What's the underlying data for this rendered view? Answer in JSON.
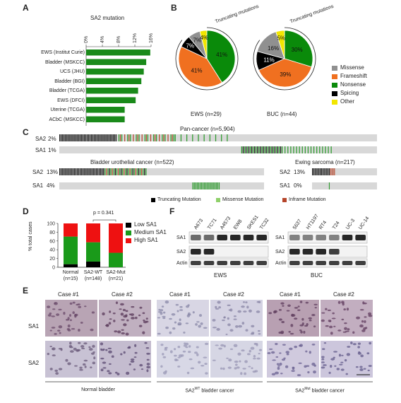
{
  "panels": {
    "A": "A",
    "B": "B",
    "C": "C",
    "D": "D",
    "E": "E",
    "F": "F"
  },
  "panelA": {
    "chart_data": {
      "type": "bar",
      "orientation": "horizontal",
      "title": "SA2 mutation",
      "categories": [
        "EWS (Institut Curie)",
        "Bladder (MSKCC)",
        "UCS (JHU)",
        "Bladder (BGI)",
        "Bladder (TCGA)",
        "EWS (DFCI)",
        "Uterine (TCGA)",
        "ACbC (MSKCC)"
      ],
      "values": [
        15.8,
        14.8,
        14.2,
        13.6,
        12.8,
        12.2,
        9.5,
        9.5
      ],
      "ticks": [
        "0%",
        "4%",
        "8%",
        "12%",
        "16%"
      ],
      "xlim": [
        0,
        16
      ],
      "color": "#1a8a1a"
    }
  },
  "panelB": {
    "chart_data": [
      {
        "type": "pie",
        "caption": "EWS (n=29)",
        "slices": [
          {
            "category": "Nonsense",
            "value": 41,
            "label": "41%"
          },
          {
            "category": "Frameshift",
            "value": 41,
            "label": "41%"
          },
          {
            "category": "Spicing",
            "value": 7,
            "label": "7%"
          },
          {
            "category": "Missense",
            "value": 7,
            "label": "7%"
          },
          {
            "category": "Other",
            "value": 4,
            "label": "4%"
          }
        ],
        "annotation": "Truncating mutations"
      },
      {
        "type": "pie",
        "caption": "BUC (n=44)",
        "slices": [
          {
            "category": "Nonsense",
            "value": 30,
            "label": "30%"
          },
          {
            "category": "Frameshift",
            "value": 39,
            "label": "39%"
          },
          {
            "category": "Spicing",
            "value": 11,
            "label": "11%"
          },
          {
            "category": "Missense",
            "value": 16,
            "label": "16%"
          },
          {
            "category": "Other",
            "value": 5,
            "label": "5%"
          }
        ],
        "annotation": "Truncating mutations"
      }
    ],
    "legend": [
      {
        "label": "Missense",
        "color": "#909090"
      },
      {
        "label": "Frameshift",
        "color": "#f07020"
      },
      {
        "label": "Nonsense",
        "color": "#0a8a0a"
      },
      {
        "label": "Spicing",
        "color": "#000000"
      },
      {
        "label": "Other",
        "color": "#f2e600"
      }
    ]
  },
  "panelC": {
    "pan_title": "Pan-cancer (n=5,904)",
    "pan_rows": [
      {
        "gene": "SA2",
        "pct": "2%"
      },
      {
        "gene": "SA1",
        "pct": "1%"
      }
    ],
    "bladder_title": "Bladder urothelial cancer (n=522)",
    "bladder_rows": [
      {
        "gene": "SA2",
        "pct": "13%"
      },
      {
        "gene": "SA1",
        "pct": "4%"
      }
    ],
    "ewing_title": "Ewing sarcoma (n=217)",
    "ewing_rows": [
      {
        "gene": "SA2",
        "pct": "13%"
      },
      {
        "gene": "SA1",
        "pct": "0%"
      }
    ],
    "legend": [
      {
        "label": "Truncating Mutation",
        "color": "#000000"
      },
      {
        "label": "Missense Mutation",
        "color": "#8fd06a"
      },
      {
        "label": "Inframe Mutation",
        "color": "#b5452a"
      }
    ]
  },
  "panelD": {
    "chart_data": {
      "type": "bar",
      "stacked": true,
      "ylabel": "% total cases",
      "categories": [
        "Normal",
        "SA2-WT",
        "SA2-Mut"
      ],
      "category_counts": [
        "(n=15)",
        "(n=148)",
        "(n=21)"
      ],
      "series": [
        {
          "name": "Low SA1",
          "values": [
            7,
            13,
            0
          ],
          "color": "#000000"
        },
        {
          "name": "Medium SA1",
          "values": [
            63,
            44,
            33
          ],
          "color": "#1a9a1a"
        },
        {
          "name": "High SA1",
          "values": [
            30,
            43,
            67
          ],
          "color": "#ee1111"
        }
      ],
      "ylim": [
        0,
        100
      ],
      "yticks": [
        "0",
        "20",
        "40",
        "60",
        "80",
        "100"
      ],
      "annotation": "p = 0.341"
    }
  },
  "panelE": {
    "case_labels": [
      "Case #1",
      "Case #2"
    ],
    "row_labels": [
      "SA1",
      "SA2"
    ],
    "groups": [
      "Normal bladder",
      "SA2WT bladder cancer",
      "SA2Mut bladder cancer"
    ],
    "group_parts": [
      {
        "pre": "Normal bladder",
        "sup": "",
        "post": ""
      },
      {
        "pre": "SA2",
        "sup": "WT",
        "post": " bladder cancer"
      },
      {
        "pre": "SA2",
        "sup": "Mut",
        "post": " bladder cancer"
      }
    ]
  },
  "panelF": {
    "ews_lanes": [
      "A673",
      "TC71",
      "A4573",
      "EW8",
      "SKES1",
      "TC32"
    ],
    "buc_lanes": [
      "5637",
      "HT1197",
      "RT4",
      "T24",
      "UC-3",
      "UC-14"
    ],
    "rows": [
      "SA1",
      "SA2",
      "Actin"
    ],
    "ews_caption": "EWS",
    "buc_caption": "BUC"
  }
}
